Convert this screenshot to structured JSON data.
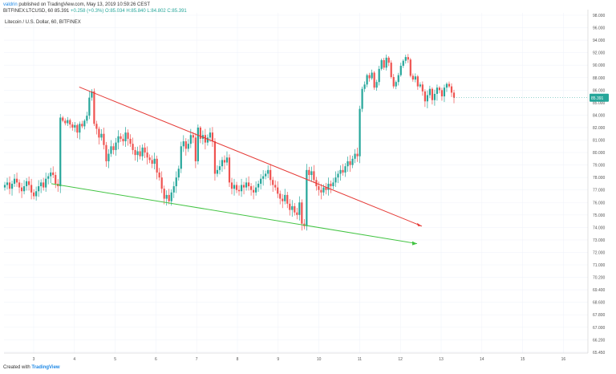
{
  "header": {
    "published_by": "valdrin",
    "published_rest": "published on TradingView.com, May 13, 2019 10:59:26 CEST",
    "ticker": "BITFINEX:LTCUSD, 60",
    "price": "85.391",
    "change": "+0.258 (+0.3%)",
    "o": "O:85.034",
    "h": "H:85.840",
    "l": "L:84.802",
    "c": "C:85.391"
  },
  "title": "Litecoin / U.S. Dollar, 60, BITFINEX",
  "footer": {
    "prefix": "Created with",
    "brand": "TradingView"
  },
  "colors": {
    "up": "#26a69a",
    "down": "#ef5350",
    "upper_trendline": "#e53935",
    "lower_trendline": "#43c443",
    "price_badge": "#26a69a"
  },
  "chart_data": {
    "type": "candlestick",
    "title": "Litecoin / U.S. Dollar, 60, BITFINEX",
    "x_tick_labels": [
      "3",
      "4",
      "5",
      "6",
      "7",
      "8",
      "9",
      "10",
      "11",
      "12",
      "13",
      "14",
      "15",
      "16"
    ],
    "y_tick_labels": [
      "65.450",
      "66.200",
      "67.000",
      "67.800",
      "68.600",
      "69.400",
      "70.200",
      "71.000",
      "72.000",
      "73.000",
      "74.000",
      "75.000",
      "76.000",
      "77.000",
      "78.000",
      "79.000",
      "80.000",
      "81.000",
      "82.000",
      "84.000",
      "85.000",
      "86.000",
      "88.000",
      "90.000",
      "92.000",
      "94.000",
      "96.000",
      "98.000"
    ],
    "last_price": "85.391",
    "closes": [
      77.4,
      77.6,
      77.1,
      77.5,
      77.9,
      77.6,
      77.2,
      76.9,
      77.3,
      77.7,
      77.4,
      76.8,
      76.5,
      76.9,
      77.3,
      77.6,
      77.2,
      77.9,
      78.1,
      78.4,
      78.2,
      77.5,
      77.3,
      83.6,
      83.1,
      82.7,
      83.2,
      82.5,
      82.0,
      82.4,
      81.6,
      82.6,
      82.2,
      83.1,
      83.9,
      85.4,
      85.9,
      82.6,
      81.9,
      81.2,
      81.5,
      80.6,
      79.3,
      79.9,
      80.5,
      80.2,
      80.8,
      81.3,
      81.1,
      80.9,
      81.6,
      81.1,
      80.7,
      80.2,
      79.8,
      80.1,
      79.7,
      80.4,
      80.0,
      79.6,
      79.4,
      79.1,
      79.5,
      78.4,
      78.0,
      77.1,
      76.3,
      76.6,
      76.1,
      76.8,
      77.3,
      78.0,
      78.7,
      80.5,
      80.9,
      80.3,
      80.7,
      81.4,
      81.2,
      79.3,
      82.0,
      81.1,
      81.4,
      80.8,
      81.2,
      81.6,
      80.9,
      78.3,
      78.6,
      78.9,
      79.4,
      79.2,
      79.6,
      77.6,
      77.1,
      77.4,
      77.0,
      76.9,
      77.4,
      77.2,
      77.6,
      77.3,
      77.0,
      76.8,
      77.2,
      77.5,
      77.9,
      78.1,
      78.3,
      78.6,
      77.8,
      77.4,
      77.2,
      76.7,
      76.3,
      76.1,
      76.6,
      75.9,
      75.4,
      75.7,
      75.2,
      75.0,
      76.0,
      74.3,
      74.1,
      78.6,
      78.2,
      78.5,
      77.8,
      77.3,
      77.0,
      76.8,
      77.2,
      77.0,
      77.5,
      77.3,
      77.6,
      78.0,
      78.3,
      78.6,
      78.4,
      78.9,
      79.3,
      79.0,
      79.5,
      79.9,
      79.7,
      84.5,
      86.2,
      86.9,
      88.4,
      87.9,
      88.8,
      86.4,
      87.3,
      89.4,
      90.8,
      89.6,
      91.2,
      90.4,
      88.1,
      86.6,
      87.3,
      88.4,
      89.9,
      90.7,
      91.3,
      90.9,
      88.3,
      87.7,
      88.2,
      86.6,
      86.9,
      85.9,
      85.1,
      85.6,
      86.2,
      85.2,
      85.7,
      86.4,
      86.0,
      85.5,
      86.4,
      87.0,
      86.6,
      85.8,
      85.4
    ],
    "upper_trendline": {
      "from": {
        "x_label": "4",
        "y": 86.5
      },
      "to_y": 74.1
    },
    "lower_trendline": {
      "from": {
        "x_label": "3",
        "y": 77.5
      },
      "to_y": 72.7
    },
    "grid": true,
    "ylim": [
      65.45,
      98.0
    ]
  }
}
